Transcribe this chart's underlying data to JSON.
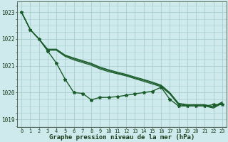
{
  "title": "Graphe pression niveau de la mer (hPa)",
  "background_color": "#ceeaec",
  "plot_bg_color": "#ceeaec",
  "grid_color": "#a8cece",
  "line_color": "#1a5c2a",
  "xlim": [
    -0.5,
    23.5
  ],
  "ylim": [
    1018.7,
    1023.4
  ],
  "yticks": [
    1019,
    1020,
    1021,
    1022,
    1023
  ],
  "xticks": [
    0,
    1,
    2,
    3,
    4,
    5,
    6,
    7,
    8,
    9,
    10,
    11,
    12,
    13,
    14,
    15,
    16,
    17,
    18,
    19,
    20,
    21,
    22,
    23
  ],
  "series": [
    {
      "name": "jagged_low",
      "y": [
        1023.0,
        1022.35,
        1022.0,
        1021.55,
        1021.1,
        1020.5,
        1020.0,
        1019.97,
        1019.73,
        1019.82,
        1019.82,
        1019.85,
        1019.9,
        1019.95,
        1020.0,
        1020.05,
        1020.2,
        1019.75,
        1019.5,
        1019.5,
        1019.5,
        1019.5,
        1019.55,
        1019.55
      ],
      "lw": 1.0,
      "marker": true
    },
    {
      "name": "smooth_upper1",
      "y": [
        1023.0,
        1022.35,
        1022.0,
        1021.58,
        1021.58,
        1021.35,
        1021.22,
        1021.12,
        1021.02,
        1020.88,
        1020.78,
        1020.7,
        1020.62,
        1020.52,
        1020.42,
        1020.32,
        1020.22,
        1019.95,
        1019.55,
        1019.5,
        1019.5,
        1019.5,
        1019.42,
        1019.6
      ],
      "lw": 0.9,
      "marker": false
    },
    {
      "name": "smooth_upper2",
      "y": [
        1023.0,
        1022.35,
        1022.0,
        1021.6,
        1021.6,
        1021.38,
        1021.26,
        1021.16,
        1021.06,
        1020.92,
        1020.82,
        1020.73,
        1020.65,
        1020.55,
        1020.46,
        1020.36,
        1020.25,
        1019.98,
        1019.58,
        1019.53,
        1019.53,
        1019.53,
        1019.45,
        1019.63
      ],
      "lw": 0.9,
      "marker": false
    },
    {
      "name": "smooth_upper3",
      "y": [
        1023.0,
        1022.35,
        1022.0,
        1021.62,
        1021.62,
        1021.4,
        1021.29,
        1021.19,
        1021.09,
        1020.95,
        1020.85,
        1020.76,
        1020.68,
        1020.58,
        1020.49,
        1020.39,
        1020.28,
        1020.0,
        1019.6,
        1019.55,
        1019.55,
        1019.55,
        1019.47,
        1019.65
      ],
      "lw": 0.9,
      "marker": false
    }
  ]
}
